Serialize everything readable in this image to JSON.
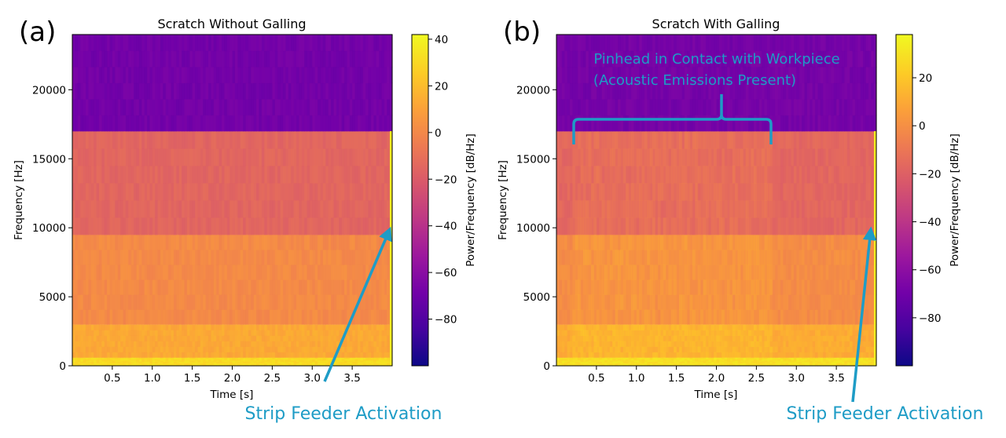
{
  "chart_data": [
    {
      "type": "heatmap",
      "panel_label": "(a)",
      "title": "Scratch Without Galling",
      "xlabel": "Time [s]",
      "ylabel": "Frequency [Hz]",
      "xlim": [
        0,
        4.0
      ],
      "ylim": [
        0,
        24000
      ],
      "xticks": [
        0.5,
        1.0,
        1.5,
        2.0,
        2.5,
        3.0,
        3.5
      ],
      "xtick_labels": [
        "0.5",
        "1.0",
        "1.5",
        "2.0",
        "2.5",
        "3.0",
        "3.5"
      ],
      "yticks": [
        0,
        5000,
        10000,
        15000,
        20000
      ],
      "ytick_labels": [
        "0",
        "5000",
        "10000",
        "15000",
        "20000"
      ],
      "colorbar": {
        "label": "Power/Frequency [dB/Hz]",
        "range": [
          -100,
          42
        ],
        "ticks": [
          40,
          20,
          0,
          -20,
          -40,
          -60,
          -80
        ],
        "tick_labels": [
          "40",
          "20",
          "0",
          "−20",
          "−40",
          "−60",
          "−80"
        ],
        "colormap": "plasma"
      },
      "bands": [
        {
          "from_hz": 0,
          "to_hz": 600,
          "db": 32
        },
        {
          "from_hz": 600,
          "to_hz": 3000,
          "db": 14
        },
        {
          "from_hz": 3000,
          "to_hz": 9500,
          "db": 2
        },
        {
          "from_hz": 9500,
          "to_hz": 17000,
          "db": -14
        },
        {
          "from_hz": 17000,
          "to_hz": 24000,
          "db": -68
        }
      ],
      "annotation": {
        "text": "Strip Feeder Activation",
        "points_to": {
          "t": 3.98,
          "f": 10000
        }
      }
    },
    {
      "type": "heatmap",
      "panel_label": "(b)",
      "title": "Scratch With Galling",
      "xlabel": "Time [s]",
      "ylabel": "Frequency [Hz]",
      "xlim": [
        0,
        4.0
      ],
      "ylim": [
        0,
        24000
      ],
      "xticks": [
        0.5,
        1.0,
        1.5,
        2.0,
        2.5,
        3.0,
        3.5
      ],
      "xtick_labels": [
        "0.5",
        "1.0",
        "1.5",
        "2.0",
        "2.5",
        "3.0",
        "3.5"
      ],
      "yticks": [
        0,
        5000,
        10000,
        15000,
        20000
      ],
      "ytick_labels": [
        "0",
        "5000",
        "10000",
        "15000",
        "20000"
      ],
      "colorbar": {
        "label": "Power/Frequency [dB/Hz]",
        "range": [
          -100,
          38
        ],
        "ticks": [
          20,
          0,
          -20,
          -40,
          -60,
          -80
        ],
        "tick_labels": [
          "20",
          "0",
          "−20",
          "−40",
          "−60",
          "−80"
        ],
        "colormap": "plasma"
      },
      "bands": [
        {
          "from_hz": 0,
          "to_hz": 600,
          "db": 30
        },
        {
          "from_hz": 600,
          "to_hz": 3000,
          "db": 12
        },
        {
          "from_hz": 3000,
          "to_hz": 9500,
          "db": 0
        },
        {
          "from_hz": 9500,
          "to_hz": 17000,
          "db": -16
        },
        {
          "from_hz": 17000,
          "to_hz": 24000,
          "db": -68
        }
      ],
      "contact_region": {
        "t_start": 0.2,
        "t_end": 2.7,
        "db_boost": 8
      },
      "brace_annotation": {
        "lines": [
          "Pinhead in Contact with Workpiece",
          "(Acoustic Emissions Present)"
        ],
        "t_start": 0.2,
        "t_end": 2.7
      },
      "annotation": {
        "text": "Strip Feeder Activation",
        "points_to": {
          "t": 3.98,
          "f": 10000
        }
      }
    }
  ],
  "colors": {
    "annotation": "#1e9cc6",
    "plasma": [
      "#0d0887",
      "#46039f",
      "#7201a8",
      "#9c179e",
      "#bd3786",
      "#d8576b",
      "#ed7953",
      "#fb9f3a",
      "#fdca26",
      "#f0f921"
    ]
  }
}
